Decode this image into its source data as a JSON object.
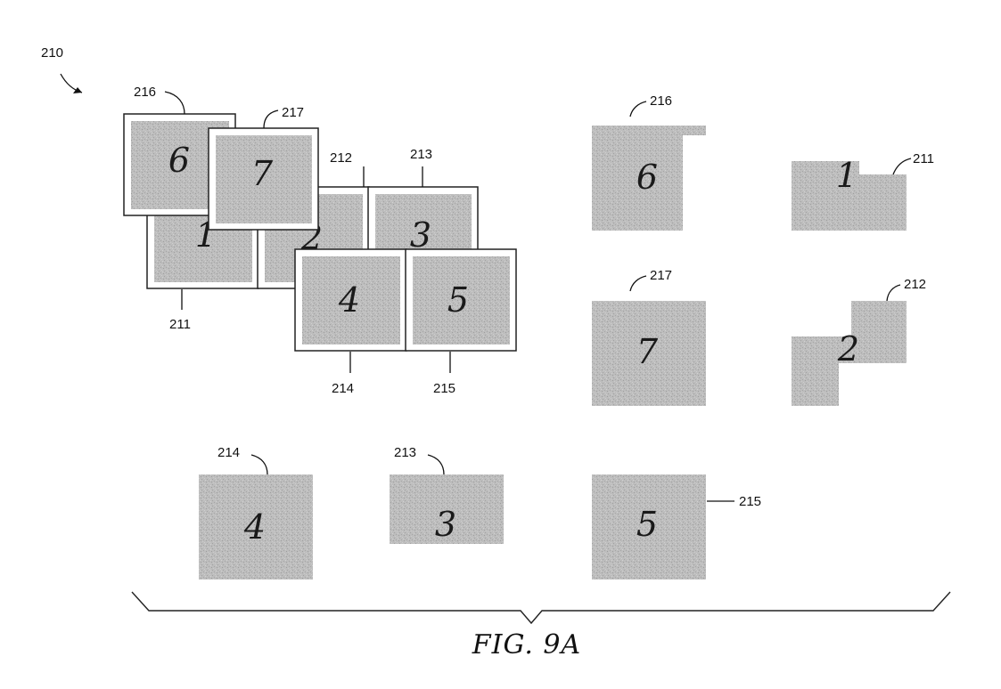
{
  "figure": {
    "caption": "FIG. 9A",
    "reference_numeral": "210"
  },
  "assembly": {
    "tiles": [
      {
        "ref": "211",
        "digit": "1"
      },
      {
        "ref": "212",
        "digit": "2"
      },
      {
        "ref": "213",
        "digit": "3"
      },
      {
        "ref": "214",
        "digit": "4"
      },
      {
        "ref": "215",
        "digit": "5"
      },
      {
        "ref": "216",
        "digit": "6"
      },
      {
        "ref": "217",
        "digit": "7"
      }
    ]
  },
  "pieces": [
    {
      "ref": "216",
      "digit": "6"
    },
    {
      "ref": "211",
      "digit": "1"
    },
    {
      "ref": "217",
      "digit": "7"
    },
    {
      "ref": "212",
      "digit": "2"
    },
    {
      "ref": "214",
      "digit": "4"
    },
    {
      "ref": "213",
      "digit": "3"
    },
    {
      "ref": "215",
      "digit": "5"
    }
  ],
  "colors": {
    "tile_fill": "#b9b9b9",
    "line": "#222222"
  }
}
